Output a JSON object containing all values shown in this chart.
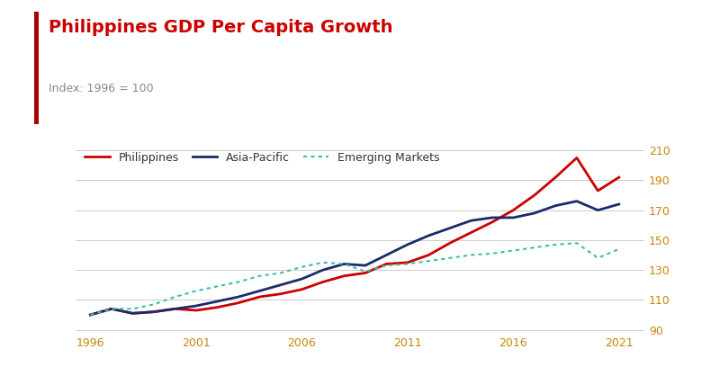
{
  "title": "Philippines GDP Per Capita Growth",
  "subtitle": "Index: 1996 = 100",
  "title_color": "#CC0000",
  "subtitle_color": "#888888",
  "accent_bar_color": "#AA0000",
  "years": [
    1996,
    1997,
    1998,
    1999,
    2000,
    2001,
    2002,
    2003,
    2004,
    2005,
    2006,
    2007,
    2008,
    2009,
    2010,
    2011,
    2012,
    2013,
    2014,
    2015,
    2016,
    2017,
    2018,
    2019,
    2020,
    2021
  ],
  "philippines": [
    100,
    104,
    101,
    102,
    104,
    103,
    105,
    108,
    112,
    114,
    117,
    122,
    126,
    128,
    134,
    135,
    140,
    148,
    155,
    162,
    170,
    180,
    192,
    205,
    183,
    192
  ],
  "asia_pacific": [
    100,
    104,
    101,
    102,
    104,
    106,
    109,
    112,
    116,
    120,
    124,
    130,
    134,
    133,
    140,
    147,
    153,
    158,
    163,
    165,
    165,
    168,
    173,
    176,
    170,
    174
  ],
  "emerging_markets": [
    100,
    104,
    104,
    107,
    112,
    116,
    119,
    122,
    126,
    128,
    132,
    135,
    134,
    129,
    133,
    134,
    136,
    138,
    140,
    141,
    143,
    145,
    147,
    148,
    138,
    144
  ],
  "philippines_color": "#CC0000",
  "asia_pacific_color": "#1B2A6B",
  "emerging_markets_color": "#3DBFA0",
  "ylim": [
    88,
    215
  ],
  "yticks": [
    90,
    110,
    130,
    150,
    170,
    190,
    210
  ],
  "background_color": "#FFFFFF",
  "grid_color": "#CCCCCC",
  "tick_label_color": "#C8860A",
  "xtick_color": "#444444",
  "legend_labels": [
    "Philippines",
    "Asia-Pacific",
    "Emerging Markets"
  ],
  "xlim_left": 1995.3,
  "xlim_right": 2022.2,
  "xtick_years": [
    1996,
    2001,
    2006,
    2011,
    2016,
    2021
  ]
}
